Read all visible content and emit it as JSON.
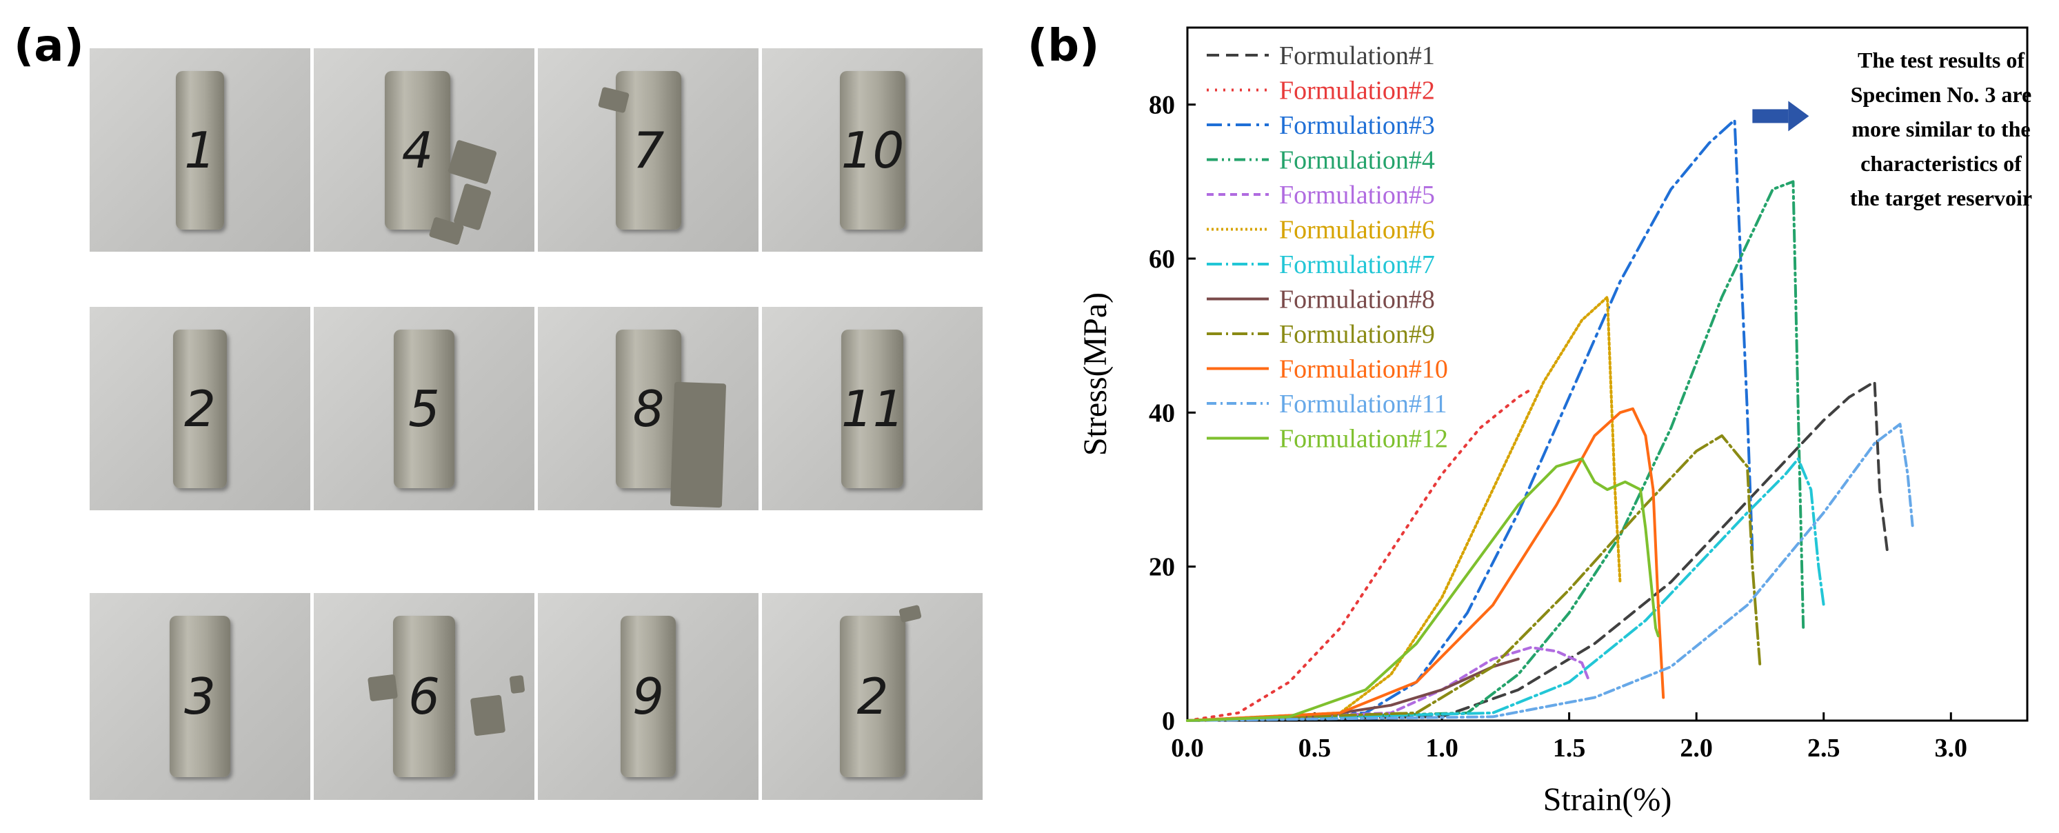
{
  "panels": {
    "a": "(a)",
    "b": "(b)"
  },
  "specimens": [
    {
      "label": "1"
    },
    {
      "label": "4"
    },
    {
      "label": "7"
    },
    {
      "label": "10"
    },
    {
      "label": "2"
    },
    {
      "label": "5"
    },
    {
      "label": "8"
    },
    {
      "label": "11"
    },
    {
      "label": "3"
    },
    {
      "label": "6"
    },
    {
      "label": "9"
    },
    {
      "label": "2"
    }
  ],
  "chart_data": {
    "type": "line",
    "title": "",
    "xlabel": "Strain(%)",
    "ylabel": "Stress(MPa)",
    "xlim": [
      0,
      3.3
    ],
    "ylim": [
      0,
      90
    ],
    "xticks": [
      "0.0",
      "0.5",
      "1.0",
      "1.5",
      "2.0",
      "2.5",
      "3.0"
    ],
    "yticks": [
      "0",
      "20",
      "40",
      "60",
      "80"
    ],
    "annotation": [
      "The test results of",
      "Specimen No. 3 are",
      "more similar to the",
      "characteristics of",
      "the target reservoir"
    ],
    "legend_position": "top-left",
    "series": [
      {
        "name": "Formulation#1",
        "color": "#404040",
        "dash": "18,10",
        "x": [
          0,
          1.0,
          1.3,
          1.6,
          1.9,
          2.1,
          2.3,
          2.5,
          2.6,
          2.7,
          2.72,
          2.75
        ],
        "y": [
          0,
          0.5,
          4,
          10,
          18,
          25,
          32,
          39,
          42,
          44,
          30,
          22
        ]
      },
      {
        "name": "Formulation#2",
        "color": "#e83a3a",
        "dash": "3,9",
        "x": [
          0,
          0.2,
          0.4,
          0.6,
          0.8,
          1.0,
          1.15,
          1.3,
          1.35
        ],
        "y": [
          0,
          1,
          5,
          12,
          22,
          32,
          38,
          42,
          43
        ]
      },
      {
        "name": "Formulation#3",
        "color": "#1f6fd6",
        "dash": "22,8,4,8",
        "x": [
          0,
          0.7,
          0.9,
          1.1,
          1.3,
          1.5,
          1.7,
          1.9,
          2.05,
          2.15,
          2.2,
          2.22
        ],
        "y": [
          0,
          1,
          5,
          14,
          27,
          42,
          57,
          69,
          75,
          78,
          40,
          22
        ]
      },
      {
        "name": "Formulation#4",
        "color": "#24a36b",
        "dash": "16,6,3,6,3,6",
        "x": [
          0,
          1.1,
          1.3,
          1.5,
          1.7,
          1.9,
          2.1,
          2.3,
          2.38,
          2.4,
          2.42
        ],
        "y": [
          0,
          1,
          6,
          14,
          24,
          38,
          55,
          69,
          70,
          40,
          12
        ]
      },
      {
        "name": "Formulation#5",
        "color": "#b06be0",
        "dash": "10,7",
        "x": [
          0,
          0.8,
          1.0,
          1.2,
          1.35,
          1.45,
          1.55,
          1.58
        ],
        "y": [
          0,
          1,
          4,
          8,
          9.5,
          9,
          7.5,
          5
        ]
      },
      {
        "name": "Formulation#6",
        "color": "#d6a300",
        "dash": "3,4",
        "x": [
          0,
          0.6,
          0.8,
          1.0,
          1.2,
          1.4,
          1.55,
          1.65,
          1.68,
          1.7
        ],
        "y": [
          0,
          1,
          6,
          16,
          30,
          44,
          52,
          55,
          30,
          18
        ]
      },
      {
        "name": "Formulation#7",
        "color": "#22c6d6",
        "dash": "22,6,3,6",
        "x": [
          0,
          1.2,
          1.5,
          1.8,
          2.0,
          2.2,
          2.35,
          2.4,
          2.45,
          2.48,
          2.5
        ],
        "y": [
          0,
          1,
          5,
          13,
          20,
          27,
          32,
          34,
          30,
          20,
          15
        ]
      },
      {
        "name": "Formulation#8",
        "color": "#7a4a4a",
        "dash": "",
        "x": [
          0,
          0.5,
          0.8,
          1.0,
          1.2,
          1.3
        ],
        "y": [
          0,
          0.5,
          2,
          4,
          7,
          8
        ]
      },
      {
        "name": "Formulation#9",
        "color": "#8a8a14",
        "dash": "22,6,3,6",
        "x": [
          0,
          0.9,
          1.2,
          1.5,
          1.8,
          2.0,
          2.1,
          2.2,
          2.22,
          2.25
        ],
        "y": [
          0,
          1,
          7,
          17,
          28,
          35,
          37,
          33,
          20,
          7
        ]
      },
      {
        "name": "Formulation#10",
        "color": "#ff6a14",
        "dash": "",
        "x": [
          0,
          0.6,
          0.9,
          1.2,
          1.45,
          1.6,
          1.7,
          1.75,
          1.8,
          1.83,
          1.85,
          1.87
        ],
        "y": [
          0,
          1,
          5,
          15,
          28,
          37,
          40,
          40.5,
          37,
          30,
          15,
          3
        ]
      },
      {
        "name": "Formulation#11",
        "color": "#66a8e8",
        "dash": "14,6,3,6",
        "x": [
          0,
          1.2,
          1.6,
          1.9,
          2.2,
          2.5,
          2.7,
          2.8,
          2.83,
          2.85
        ],
        "y": [
          0,
          0.5,
          3,
          7,
          15,
          27,
          36,
          38.5,
          32,
          25
        ]
      },
      {
        "name": "Formulation#12",
        "color": "#7ec02e",
        "dash": "",
        "x": [
          0,
          0.4,
          0.7,
          0.9,
          1.1,
          1.3,
          1.45,
          1.55,
          1.6,
          1.65,
          1.72,
          1.78,
          1.8,
          1.84,
          1.85
        ],
        "y": [
          0,
          0.5,
          4,
          10,
          19,
          28,
          33,
          34,
          31,
          30,
          31,
          30,
          25,
          12,
          11
        ]
      }
    ]
  }
}
